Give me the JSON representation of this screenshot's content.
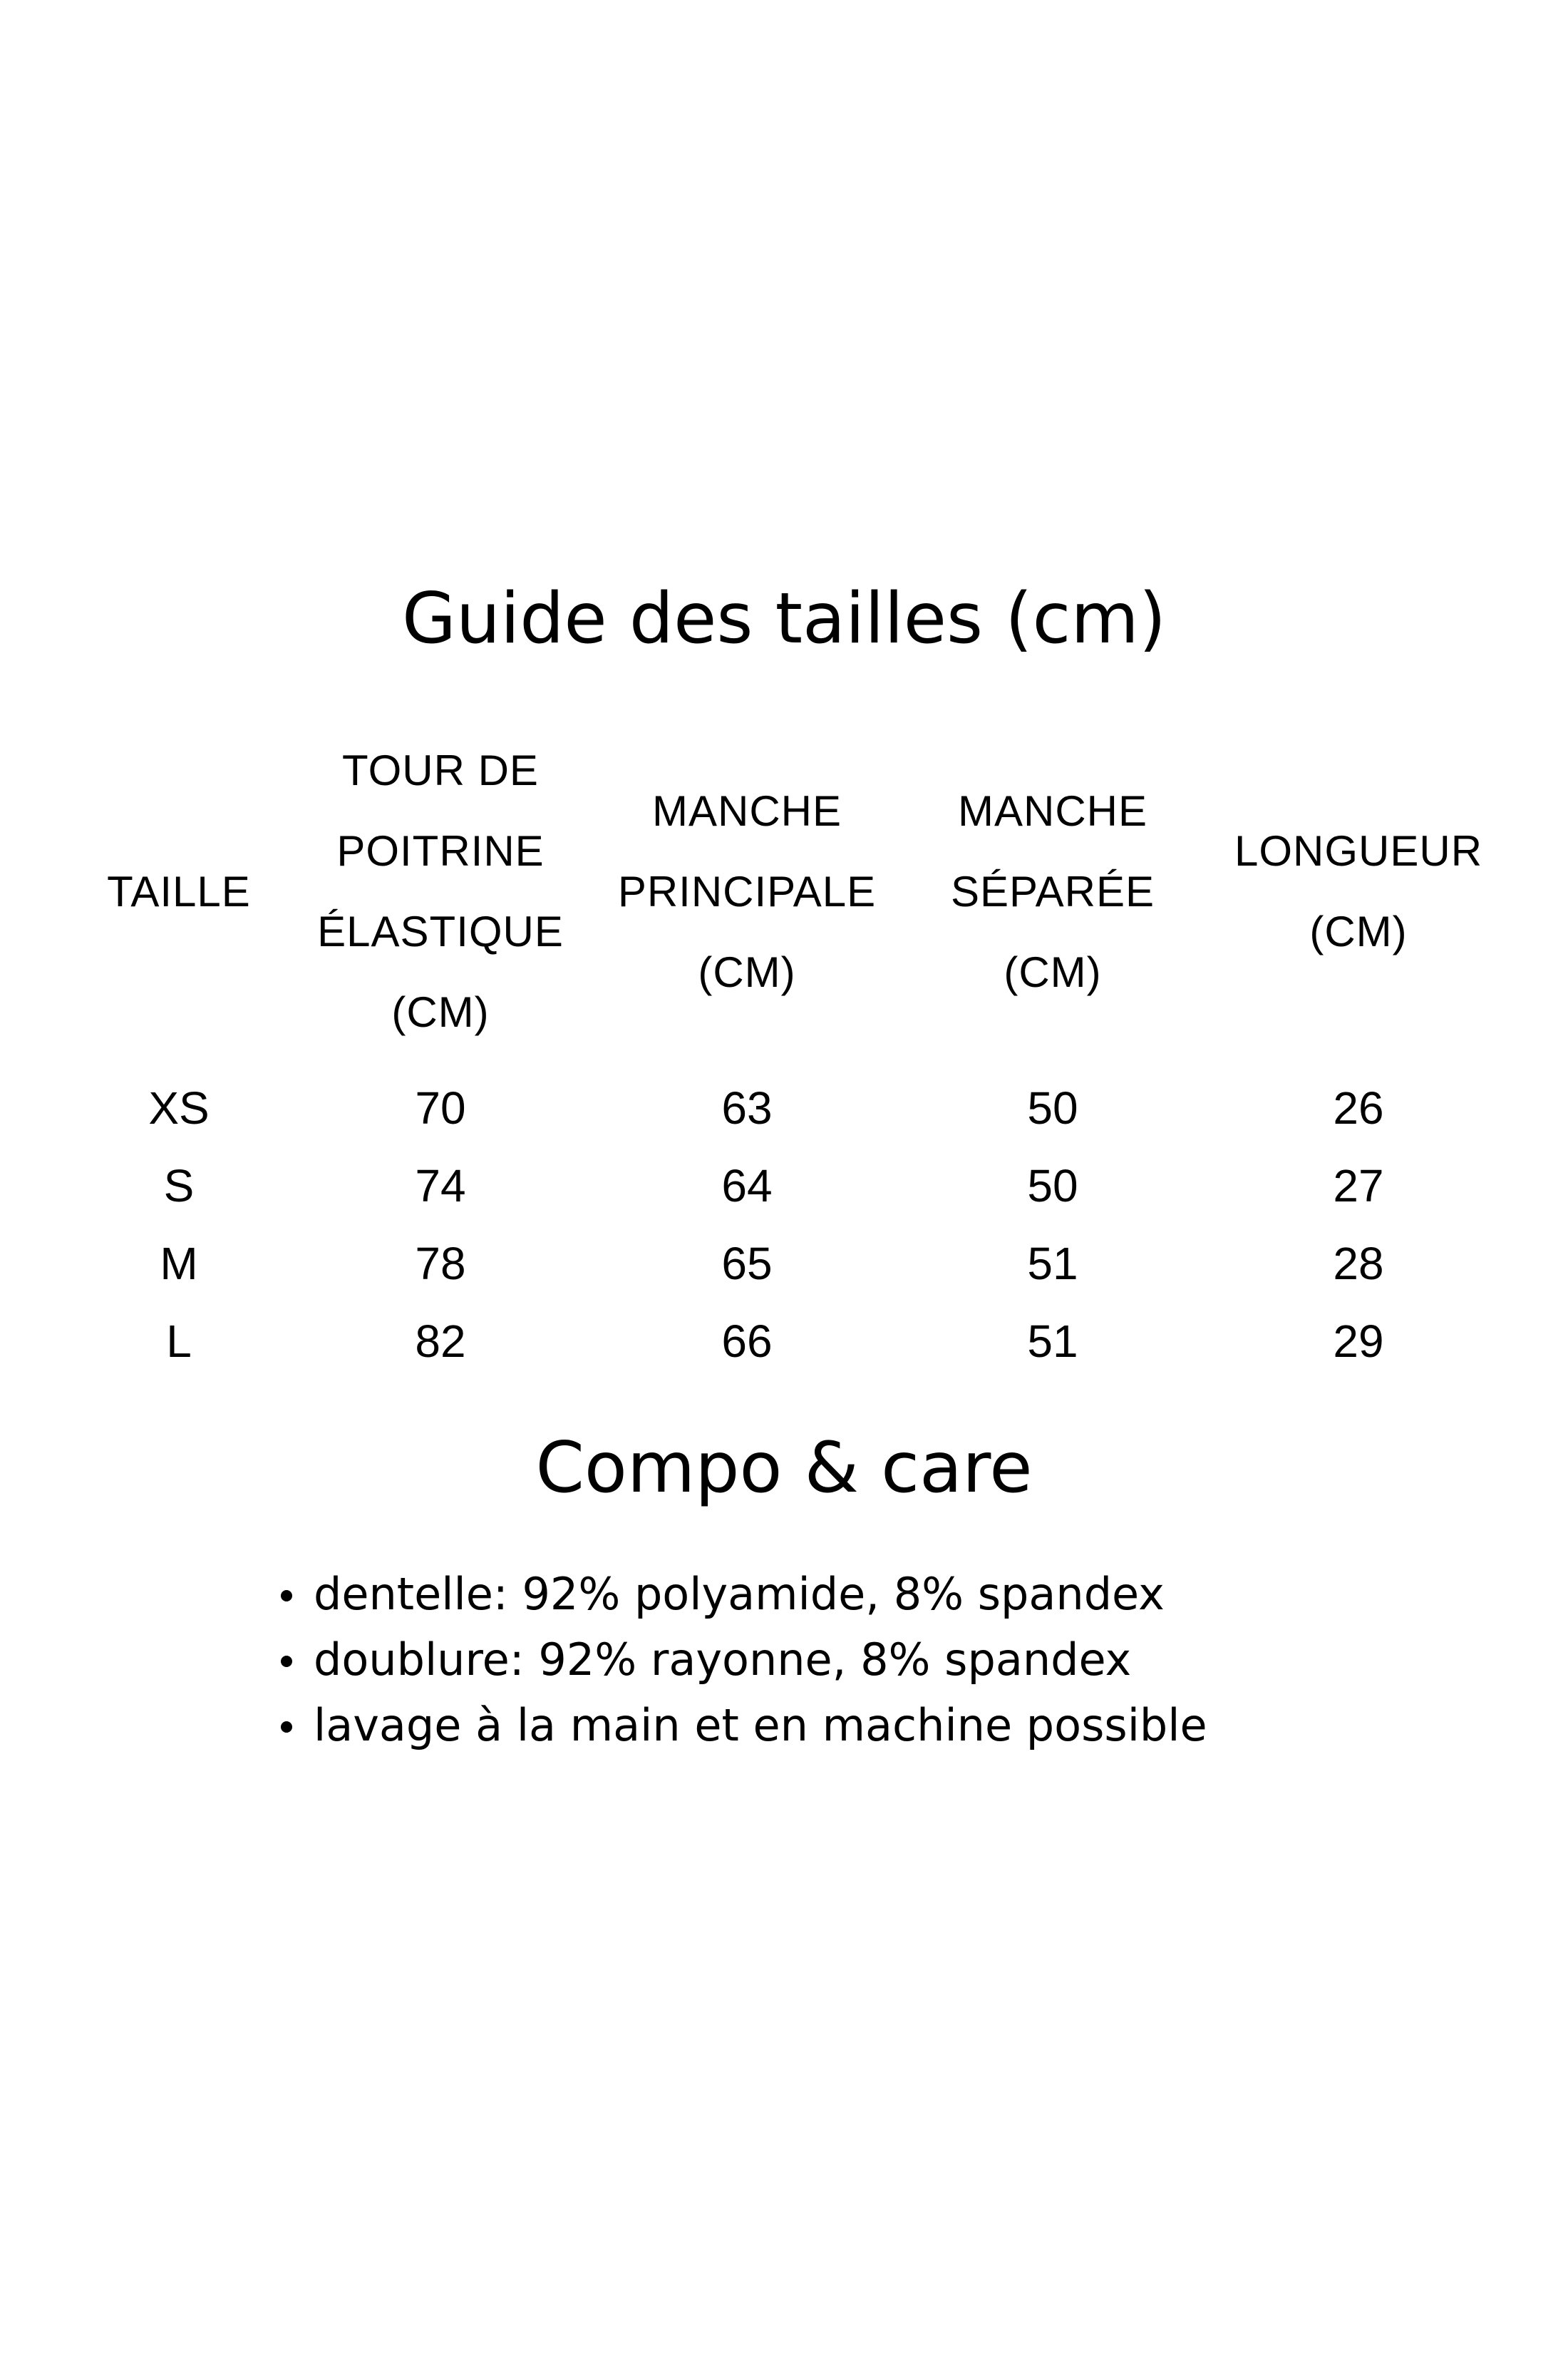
{
  "size_guide": {
    "title": "Guide des tailles (cm)",
    "headers": [
      [
        "TAILLE"
      ],
      [
        "TOUR DE",
        "POITRINE",
        "ÉLASTIQUE",
        "(CM)"
      ],
      [
        "MANCHE",
        "PRINCIPALE",
        "(CM)"
      ],
      [
        "MANCHE",
        "SÉPARÉE",
        "(CM)"
      ],
      [
        "LONGUEUR",
        "(CM)"
      ]
    ],
    "rows": [
      [
        "XS",
        "70",
        "63",
        "50",
        "26"
      ],
      [
        "S",
        "74",
        "64",
        "50",
        "27"
      ],
      [
        "M",
        "78",
        "65",
        "51",
        "28"
      ],
      [
        "L",
        "82",
        "66",
        "51",
        "29"
      ]
    ]
  },
  "compo_care": {
    "title": "Compo & care",
    "items": [
      "dentelle: 92% polyamide, 8% spandex",
      "doublure: 92% rayonne, 8% spandex",
      "lavage à la main et en machine possible"
    ]
  }
}
